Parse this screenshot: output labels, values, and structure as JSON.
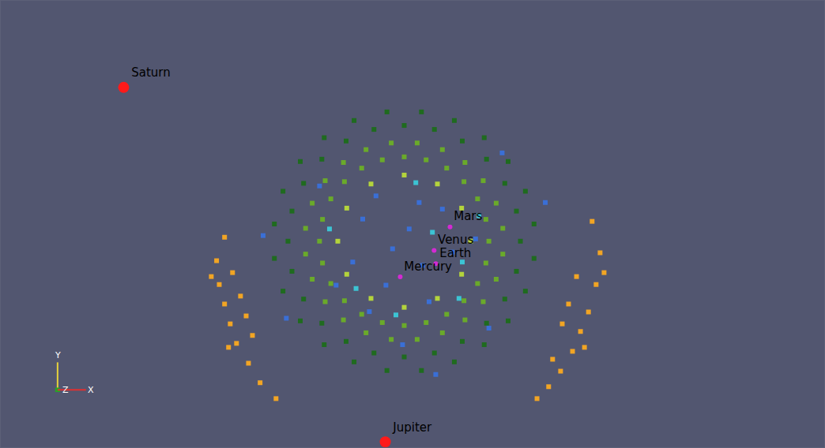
{
  "chart_data": {
    "type": "scatter",
    "xlim": [
      -12.1,
      12.7
    ],
    "ylim": [
      -5.4,
      8.1
    ],
    "tick_labels": false,
    "grid": false,
    "series": [
      {
        "color": "#1f6b1f",
        "marker": "square",
        "x": [
          3.55,
          3.43,
          3.08,
          2.53,
          1.8,
          0.96,
          0.05,
          -0.86,
          -1.7,
          -2.43,
          -2.98,
          -3.33,
          -3.45,
          -3.33,
          -2.98,
          -2.43,
          -1.7,
          -0.86,
          0.05,
          0.96,
          1.8,
          2.53,
          3.08,
          3.43,
          3.96,
          3.7,
          3.18,
          2.46,
          1.56,
          0.57,
          -0.47,
          -1.46,
          -2.36,
          -3.08,
          -3.6,
          -3.86,
          -3.86,
          -3.6,
          -3.08,
          -2.36,
          -1.46,
          -0.47,
          0.57,
          1.56,
          2.46,
          3.18,
          3.7,
          3.96
        ],
        "y": [
          0.83,
          1.74,
          2.58,
          3.31,
          3.86,
          4.21,
          4.33,
          4.21,
          3.86,
          3.31,
          2.58,
          1.74,
          0.83,
          -0.08,
          -0.92,
          -1.65,
          -2.2,
          -2.55,
          -2.67,
          -2.55,
          -2.2,
          -1.65,
          -0.92,
          -0.08,
          1.35,
          2.34,
          3.24,
          3.96,
          4.48,
          4.74,
          4.74,
          4.48,
          3.96,
          3.24,
          2.34,
          1.35,
          0.31,
          -0.68,
          -1.58,
          -2.3,
          -2.82,
          -3.08,
          -3.08,
          -2.82,
          -2.3,
          -1.58,
          -0.68,
          0.31
        ]
      },
      {
        "color": "#6aaa2a",
        "marker": "square",
        "x": [
          2.6,
          2.51,
          2.26,
          1.85,
          1.33,
          0.71,
          0.05,
          -0.61,
          -1.23,
          -1.75,
          -2.16,
          -2.41,
          -2.5,
          -2.41,
          -2.16,
          -1.75,
          -1.23,
          -0.61,
          0.05,
          0.71,
          1.33,
          1.85,
          2.26,
          2.51,
          3.02,
          2.82,
          2.43,
          1.88,
          1.2,
          0.44,
          -0.34,
          -1.1,
          -1.78,
          -2.33,
          -2.72,
          -2.92,
          -2.92,
          -2.72,
          -2.33,
          -1.78,
          -1.1,
          -0.34,
          0.44,
          1.2,
          1.88,
          2.43,
          2.82,
          3.02
        ],
        "y": [
          0.83,
          1.49,
          2.11,
          2.63,
          3.04,
          3.29,
          3.38,
          3.29,
          3.04,
          2.63,
          2.11,
          1.49,
          0.83,
          0.17,
          -0.45,
          -0.97,
          -1.38,
          -1.63,
          -1.72,
          -1.63,
          -1.38,
          -0.97,
          -0.45,
          0.17,
          1.22,
          1.98,
          2.66,
          3.21,
          3.6,
          3.8,
          3.8,
          3.6,
          3.21,
          2.66,
          1.98,
          1.22,
          0.44,
          -0.32,
          -1.0,
          -1.55,
          -1.94,
          -2.14,
          -2.14,
          -1.94,
          -1.55,
          -1.0,
          -0.32,
          0.44
        ]
      },
      {
        "color": "#b4d43c",
        "marker": "square",
        "x": [
          2.05,
          1.78,
          1.05,
          0.05,
          -0.95,
          -1.68,
          -1.95,
          -1.68,
          -0.95,
          0.05,
          1.05,
          1.78
        ],
        "y": [
          0.83,
          1.83,
          2.56,
          2.83,
          2.56,
          1.83,
          0.83,
          -0.17,
          -0.9,
          -1.17,
          -0.9,
          -0.17
        ]
      },
      {
        "color": "#3a6fd6",
        "marker": "square",
        "x": [
          -1.2,
          0.5,
          1.5,
          -0.5,
          0.8,
          -1.5,
          0.2,
          1.2,
          -0.8,
          -2.0,
          2.2,
          0.0,
          -2.5,
          3.0,
          -3.5,
          1.0,
          -0.3,
          0.6,
          -1.0,
          2.6,
          -4.2,
          4.3
        ],
        "y": [
          1.5,
          2.0,
          0.5,
          -0.5,
          -1.0,
          0.2,
          1.2,
          1.8,
          2.2,
          -0.5,
          0.9,
          -2.3,
          2.5,
          3.5,
          -1.5,
          -3.2,
          0.6,
          0.1,
          -1.3,
          -1.8,
          1.0,
          2.0
        ]
      },
      {
        "color": "#3cc4d4",
        "marker": "square",
        "x": [
          1.8,
          -1.4,
          0.9,
          1.7,
          -0.2,
          2.3,
          -2.2,
          0.4
        ],
        "y": [
          0.2,
          -0.6,
          1.1,
          -0.9,
          -1.4,
          1.6,
          1.2,
          2.6
        ]
      },
      {
        "color": "#f2a524",
        "marker": "square",
        "x": [
          -5.36,
          -5.6,
          -5.52,
          -5.36,
          -5.19,
          -5.0,
          -4.64,
          -4.29,
          -3.81,
          -5.12,
          -4.88,
          -4.71,
          -4.52,
          -5.76,
          -5.24,
          5.71,
          5.95,
          5.83,
          5.6,
          5.36,
          5.12,
          4.76,
          4.4,
          4.05,
          5.24,
          5.0,
          4.81,
          5.48,
          6.07,
          4.52
        ],
        "y": [
          0.95,
          0.24,
          -0.48,
          -1.07,
          -1.67,
          -2.26,
          -2.86,
          -3.45,
          -3.93,
          -0.12,
          -0.83,
          -1.43,
          -2.02,
          -0.24,
          -2.38,
          1.43,
          0.48,
          -0.48,
          -1.31,
          -1.9,
          -2.5,
          -3.1,
          -3.57,
          -3.93,
          -0.24,
          -1.07,
          -1.67,
          -2.38,
          -0.12,
          -2.74
        ]
      }
    ],
    "planets": [
      {
        "name": "Saturn",
        "x": -8.4,
        "y": 5.48,
        "color": "#ff1a1a",
        "marker": "large"
      },
      {
        "name": "Jupiter",
        "x": -0.52,
        "y": -5.24,
        "color": "#ff1a1a",
        "marker": "large"
      },
      {
        "name": "Mars",
        "x": 1.43,
        "y": 1.26,
        "color": "#d42ad4",
        "marker": "small"
      },
      {
        "name": "Venus",
        "x": 0.95,
        "y": 0.55,
        "color": "#d42ad4",
        "marker": "small"
      },
      {
        "name": "Earth",
        "x": 1.0,
        "y": 0.15,
        "color": "#d42ad4",
        "marker": "small"
      },
      {
        "name": "Mercury",
        "x": -0.07,
        "y": -0.25,
        "color": "#d42ad4",
        "marker": "small"
      }
    ],
    "axes_triad": [
      {
        "label": "Y",
        "color": "#e6d23c"
      },
      {
        "label": "Z",
        "color": "#2aa02a"
      },
      {
        "label": "X",
        "color": "#e03030"
      }
    ]
  }
}
